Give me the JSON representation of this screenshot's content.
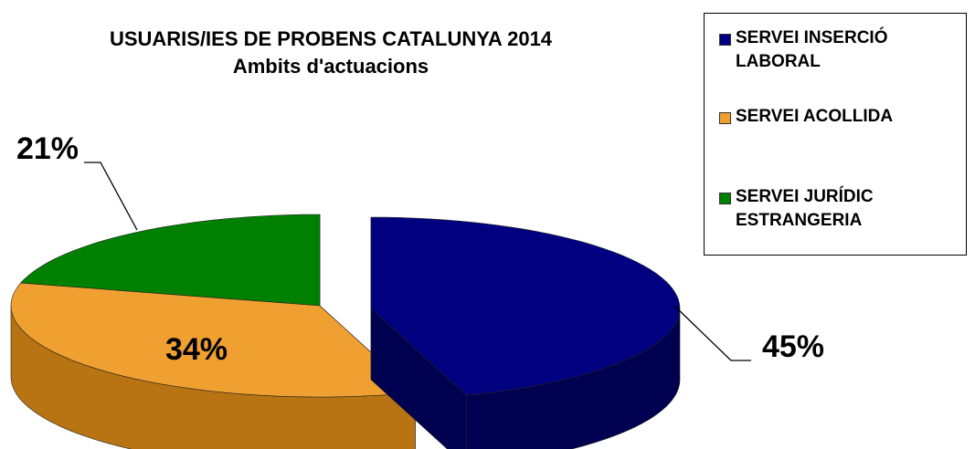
{
  "chart_data": {
    "type": "pie3d",
    "title": "USUARIS/IES DE PROBENS CATALUNYA 2014",
    "subtitle": "Ambits d'actuacions",
    "categories": [
      "SERVEI INSERCIÓ LABORAL",
      "SERVEI ACOLLIDA",
      "SERVEI JURÍDIC ESTRANGERIA"
    ],
    "values": [
      45,
      34,
      21
    ],
    "value_labels": [
      "45%",
      "34%",
      "21%"
    ],
    "colors": [
      "#000080",
      "#f0a030",
      "#008000"
    ],
    "side_colors": [
      "#000050",
      "#b87412",
      "#004000"
    ],
    "legend": "right"
  }
}
